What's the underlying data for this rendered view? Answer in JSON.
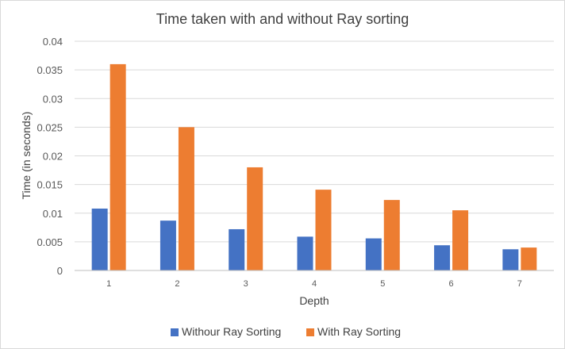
{
  "chart_data": {
    "type": "bar",
    "title": "Time taken with and without Ray sorting",
    "xlabel": "Depth",
    "ylabel": "Time (in seconds)",
    "categories": [
      "1",
      "2",
      "3",
      "4",
      "5",
      "6",
      "7"
    ],
    "ylim": [
      0,
      0.04
    ],
    "yticks": [
      "0",
      "0.005",
      "0.01",
      "0.015",
      "0.02",
      "0.025",
      "0.03",
      "0.035",
      "0.04"
    ],
    "grid": true,
    "legend_position": "bottom",
    "series": [
      {
        "name": "Withour Ray Sorting",
        "color": "#4472c4",
        "values": [
          0.0108,
          0.0087,
          0.0072,
          0.0059,
          0.0056,
          0.0044,
          0.0037
        ]
      },
      {
        "name": "With Ray Sorting",
        "color": "#ed7d31",
        "values": [
          0.036,
          0.025,
          0.018,
          0.0141,
          0.0123,
          0.0105,
          0.004
        ]
      }
    ]
  }
}
